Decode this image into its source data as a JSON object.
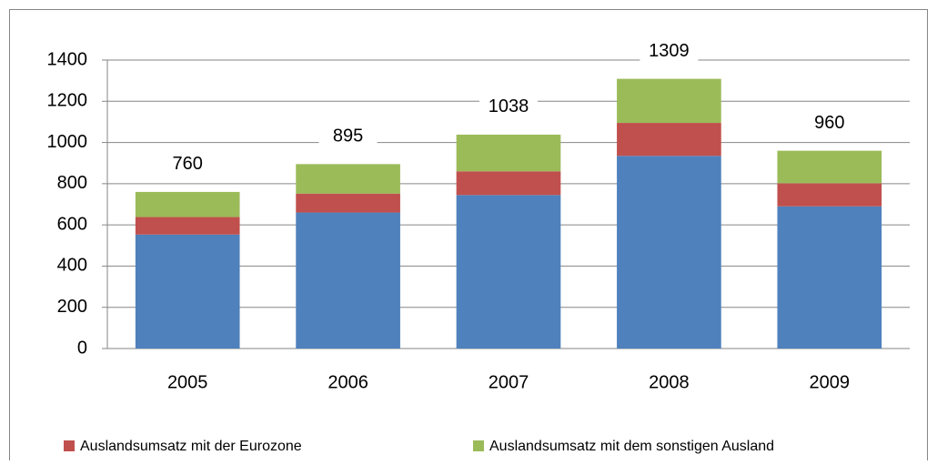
{
  "chart_data": {
    "type": "stacked_bar",
    "categories": [
      "2005",
      "2006",
      "2007",
      "2008",
      "2009"
    ],
    "series": [
      {
        "color": "#4f81bd",
        "values": [
          553,
          660,
          745,
          935,
          690
        ]
      },
      {
        "name": "Auslandsumsatz mit der Eurozone",
        "color": "#c0504d",
        "values": [
          85,
          92,
          115,
          160,
          112
        ]
      },
      {
        "name": "Auslandsumsatz mit dem sonstigen Ausland",
        "color": "#9bbb59",
        "values": [
          122,
          143,
          178,
          214,
          158
        ]
      }
    ],
    "totals": [
      760,
      895,
      1038,
      1309,
      960
    ],
    "ylim": [
      0,
      1400
    ],
    "yticks": [
      0,
      200,
      400,
      600,
      800,
      1000,
      1200,
      1400
    ],
    "grid": true,
    "legend": "bottom"
  }
}
